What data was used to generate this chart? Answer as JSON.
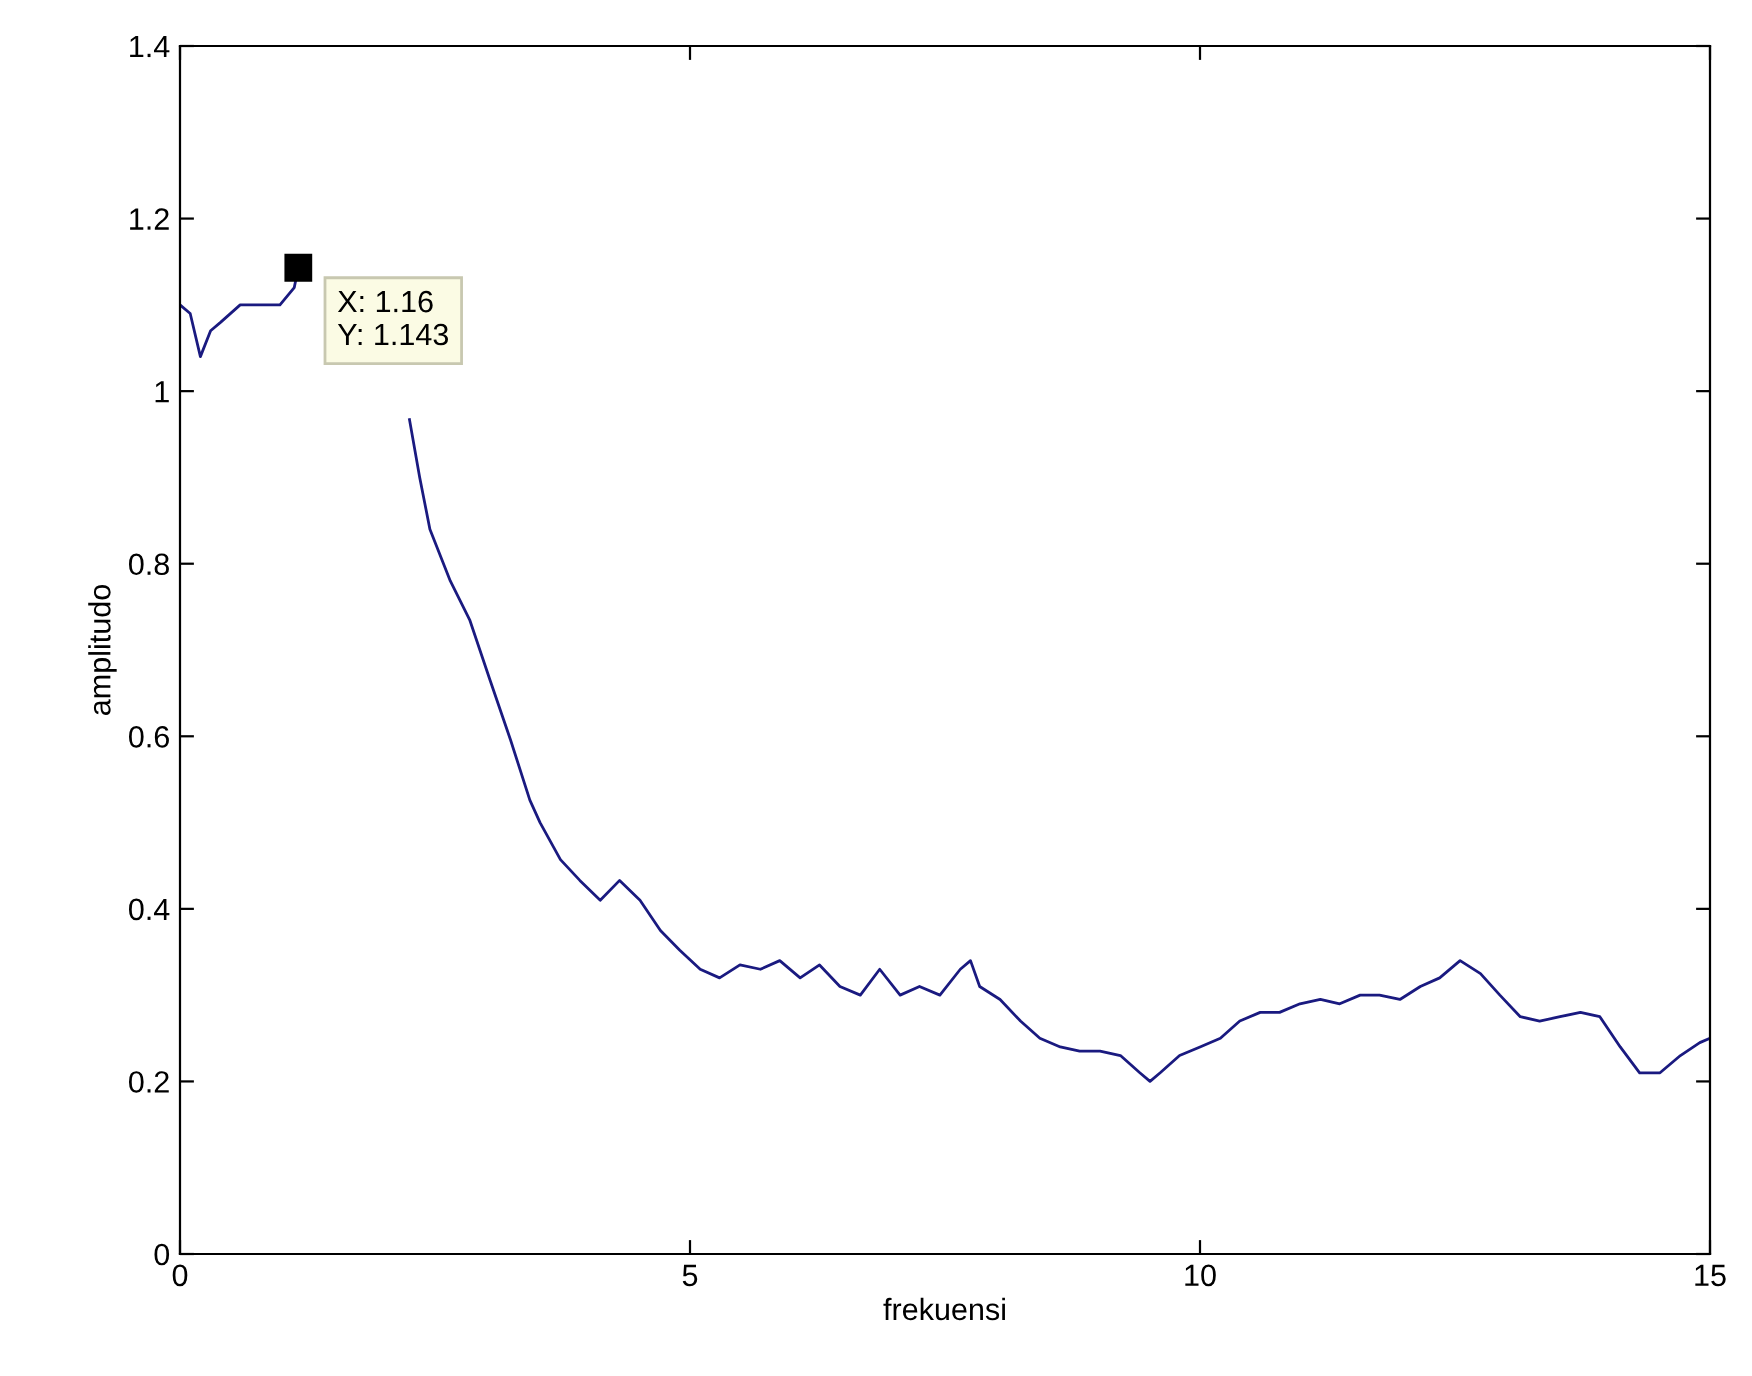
{
  "chart_data": {
    "type": "line",
    "xlabel": "frekuensi",
    "ylabel": "amplitudo",
    "xlim": [
      0,
      15
    ],
    "ylim": [
      0,
      1.4
    ],
    "xticks": [
      0,
      5,
      10,
      15
    ],
    "yticks": [
      0,
      0.2,
      0.4,
      0.6,
      0.8,
      1,
      1.2,
      1.4
    ],
    "grid": false,
    "legend": false,
    "marker": "none",
    "line_style": "solid",
    "series": [
      {
        "color": "#1a1a80",
        "x": [
          0,
          0.1,
          0.2,
          0.3,
          0.4,
          0.59,
          0.78,
          0.98,
          1.12,
          1.16,
          1.2,
          1.5,
          2.25,
          2.35,
          2.45,
          2.65,
          2.84,
          3.04,
          3.24,
          3.43,
          3.53,
          3.73,
          3.92,
          4.12,
          4.31,
          4.51,
          4.71,
          4.9,
          5.1,
          5.29,
          5.49,
          5.69,
          5.88,
          6.08,
          6.27,
          6.47,
          6.67,
          6.86,
          7.06,
          7.25,
          7.45,
          7.65,
          7.75,
          7.84,
          8.04,
          8.24,
          8.43,
          8.63,
          8.82,
          9.02,
          9.22,
          9.41,
          9.51,
          9.61,
          9.8,
          10.0,
          10.2,
          10.39,
          10.59,
          10.78,
          10.98,
          11.18,
          11.37,
          11.57,
          11.76,
          11.96,
          12.16,
          12.35,
          12.55,
          12.75,
          12.94,
          13.14,
          13.33,
          13.53,
          13.73,
          13.92,
          14.12,
          14.31,
          14.51,
          14.71,
          14.9,
          15
        ],
        "values": [
          1.1,
          1.09,
          1.04,
          1.07,
          1.08,
          1.1,
          1.1,
          1.1,
          1.12,
          1.143,
          1.13,
          null,
          0.967,
          0.9,
          0.84,
          0.78,
          0.735,
          0.665,
          0.596,
          0.526,
          0.5,
          0.457,
          0.433,
          0.41,
          0.433,
          0.41,
          0.375,
          0.352,
          0.33,
          0.32,
          0.335,
          0.33,
          0.34,
          0.32,
          0.335,
          0.31,
          0.3,
          0.33,
          0.3,
          0.31,
          0.3,
          0.33,
          0.34,
          0.31,
          0.295,
          0.27,
          0.25,
          0.24,
          0.235,
          0.235,
          0.23,
          0.21,
          0.2,
          0.21,
          0.23,
          0.24,
          0.25,
          0.27,
          0.28,
          0.28,
          0.29,
          0.295,
          0.29,
          0.3,
          0.3,
          0.295,
          0.31,
          0.32,
          0.34,
          0.325,
          0.3,
          0.275,
          0.27,
          0.275,
          0.28,
          0.275,
          0.24,
          0.21,
          0.21,
          0.23,
          0.245,
          0.25
        ]
      }
    ],
    "annotations": [
      {
        "text": "X: 1.16\nY: 1.143",
        "x": 1.16,
        "y": 1.143
      }
    ]
  }
}
